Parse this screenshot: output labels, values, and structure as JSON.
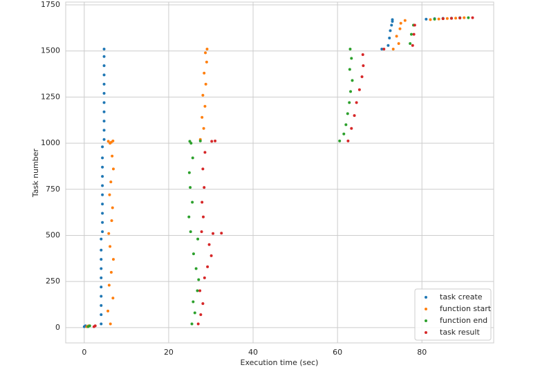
{
  "chart_data": {
    "type": "scatter",
    "x_label": "Execution time (sec)",
    "y_label": "Task number",
    "xlim": [
      -4.4,
      97
    ],
    "ylim": [
      -83,
      1765
    ],
    "xticks": [
      0,
      20,
      40,
      60,
      80
    ],
    "yticks": [
      0,
      250,
      500,
      750,
      1000,
      1250,
      1500,
      1750
    ],
    "grid": true,
    "legend_position": "lower-right",
    "series": [
      {
        "name": "task create",
        "color": "#1f77b4",
        "x": [
          0,
          0.3,
          4,
          4,
          4,
          4,
          4,
          4,
          4,
          4,
          4,
          4,
          4.3,
          4.3,
          4.3,
          4.3,
          4.3,
          4.3,
          4.3,
          4.3,
          4.3,
          4.3,
          4.7,
          4.7,
          4.7,
          4.7,
          4.7,
          4.7,
          4.7,
          4.7,
          4.7,
          4.7,
          4.7,
          70.5,
          72,
          72.3,
          72.5,
          72.8,
          73,
          73,
          81,
          83,
          85,
          87,
          89
        ],
        "y": [
          5,
          10,
          20,
          70,
          120,
          170,
          220,
          270,
          320,
          370,
          420,
          480,
          520,
          570,
          620,
          670,
          720,
          770,
          820,
          870,
          920,
          980,
          1020,
          1070,
          1120,
          1170,
          1220,
          1270,
          1320,
          1370,
          1420,
          1470,
          1510,
          1510,
          1530,
          1570,
          1610,
          1640,
          1660,
          1670,
          1672,
          1675,
          1677,
          1678,
          1680
        ]
      },
      {
        "name": "function start",
        "color": "#ff7f0e",
        "x": [
          0.6,
          1,
          6.2,
          5.6,
          6.8,
          5.9,
          6.4,
          6.9,
          6.1,
          5.8,
          6.5,
          6.7,
          6,
          6.3,
          6.9,
          6.6,
          6.1,
          5.7,
          6.4,
          6.8,
          27.5,
          28.3,
          27.9,
          28.6,
          28.1,
          28.8,
          28.4,
          29,
          28.7,
          29.1,
          73.2,
          74.5,
          74,
          74.8,
          75,
          76,
          82,
          84,
          86,
          88,
          90
        ],
        "y": [
          5,
          10,
          20,
          90,
          160,
          230,
          300,
          370,
          440,
          510,
          580,
          650,
          720,
          790,
          860,
          930,
          1000,
          1010,
          1005,
          1012,
          1020,
          1080,
          1140,
          1200,
          1260,
          1320,
          1380,
          1440,
          1490,
          1510,
          1510,
          1540,
          1580,
          1620,
          1650,
          1665,
          1670,
          1673,
          1676,
          1678,
          1680
        ]
      },
      {
        "name": "function end",
        "color": "#2ca02c",
        "x": [
          0.9,
          1.3,
          25.5,
          26.2,
          25.8,
          26.8,
          27.1,
          26.5,
          25.9,
          26.9,
          25.2,
          24.8,
          25.6,
          25.1,
          24.9,
          25.7,
          25.3,
          25,
          27.5,
          60.5,
          61.5,
          62,
          62.4,
          62.8,
          63.1,
          63.5,
          62.9,
          63.3,
          63,
          77.2,
          77.5,
          78,
          83,
          85,
          87,
          89,
          91
        ],
        "y": [
          5,
          10,
          20,
          80,
          140,
          200,
          260,
          320,
          400,
          480,
          520,
          600,
          680,
          760,
          840,
          920,
          1000,
          1010,
          1012,
          1012,
          1050,
          1100,
          1160,
          1220,
          1280,
          1340,
          1400,
          1460,
          1510,
          1540,
          1590,
          1640,
          1672,
          1675,
          1677,
          1679,
          1680
        ]
      },
      {
        "name": "task result",
        "color": "#d62728",
        "x": [
          2.3,
          2.6,
          27,
          27.6,
          28.1,
          27.4,
          28.5,
          29.2,
          30.1,
          29.6,
          30.5,
          32.5,
          27.8,
          28.2,
          27.9,
          28.4,
          28.1,
          28.6,
          30.2,
          31,
          62.5,
          63.3,
          64,
          64.5,
          65.2,
          65.8,
          66.1,
          66,
          71,
          77.8,
          78.1,
          78.3,
          85,
          87,
          89,
          92
        ],
        "y": [
          5,
          10,
          20,
          70,
          130,
          200,
          270,
          330,
          390,
          450,
          510,
          512,
          520,
          600,
          680,
          760,
          860,
          950,
          1010,
          1012,
          1012,
          1080,
          1150,
          1220,
          1290,
          1360,
          1420,
          1480,
          1510,
          1530,
          1590,
          1640,
          1675,
          1677,
          1679,
          1680
        ]
      }
    ]
  }
}
